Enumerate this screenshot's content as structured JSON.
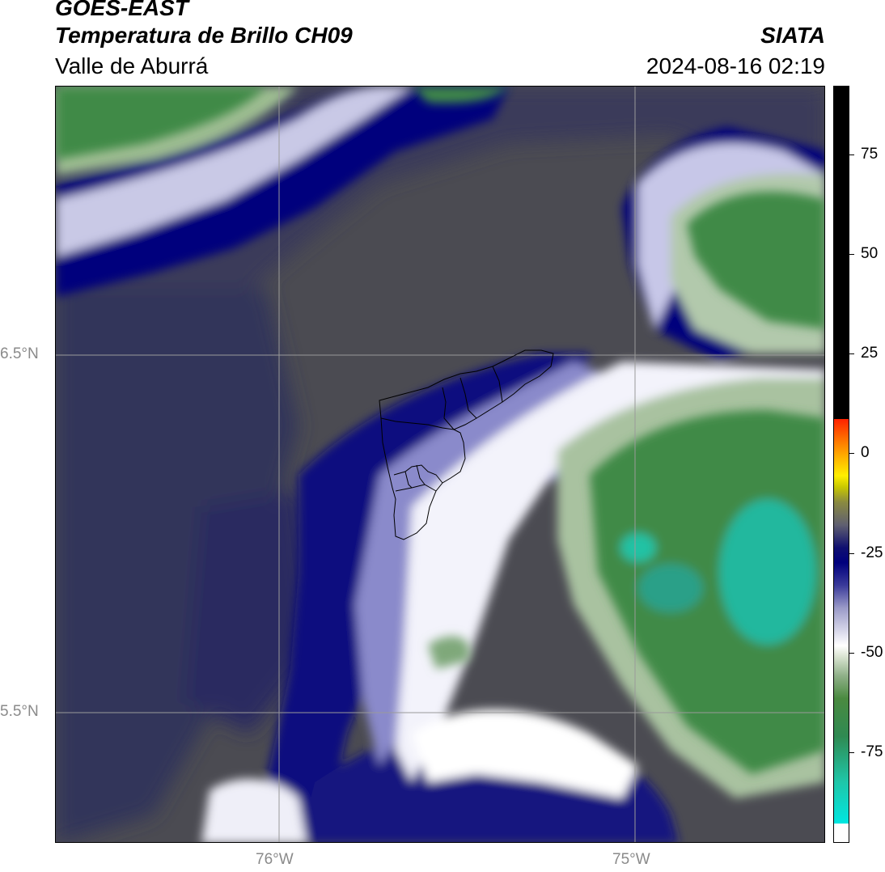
{
  "header": {
    "agency": "GOES-EAST",
    "product": "Temperatura de Brillo CH09",
    "region": "Valle de Aburrá",
    "org": "SIATA",
    "datetime": "2024-08-16 02:19"
  },
  "axes": {
    "lat_ticks": [
      "6.5°N",
      "5.5°N"
    ],
    "lon_ticks": [
      "76°W",
      "75°W"
    ]
  },
  "colorbar": {
    "ticks": [
      "75",
      "50",
      "25",
      "0",
      "-25",
      "-50",
      "-75"
    ]
  },
  "colors": {
    "background_gray": "#4b4b52",
    "deep_blue": "#00007d",
    "white_band": "#ffffff",
    "green": "#3f8a46",
    "cyan": "#1fc6a8"
  }
}
